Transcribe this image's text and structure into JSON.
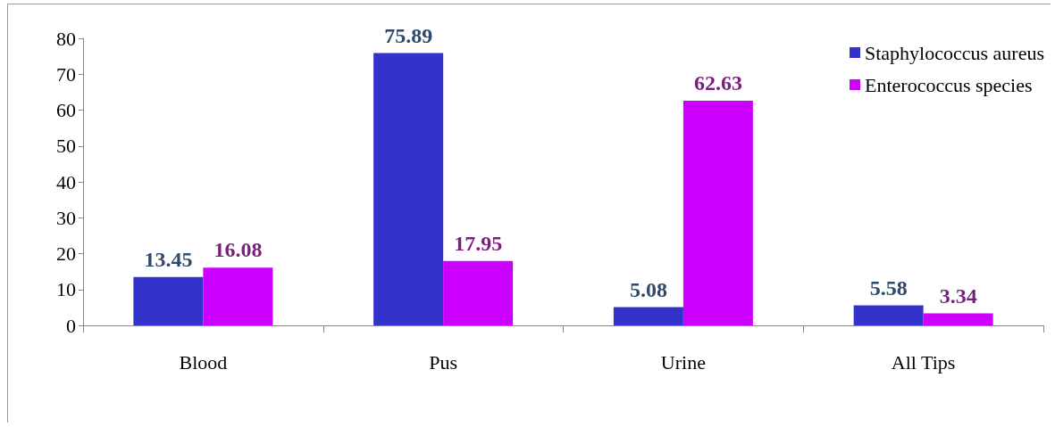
{
  "chart_data": {
    "type": "bar",
    "categories": [
      "Blood",
      "Pus",
      "Urine",
      "All Tips"
    ],
    "series": [
      {
        "name": "Staphylococcus aureus",
        "color": "#3333cc",
        "values": [
          13.45,
          75.89,
          5.08,
          5.58
        ]
      },
      {
        "name": "Enterococcus species",
        "color": "#cc00ff",
        "values": [
          16.08,
          17.95,
          62.63,
          3.34
        ]
      }
    ],
    "ylim": [
      0,
      80
    ],
    "yticks": [
      0,
      10,
      20,
      30,
      40,
      50,
      60,
      70,
      80
    ],
    "grid": false,
    "legend": "top right",
    "data_labels": true
  }
}
